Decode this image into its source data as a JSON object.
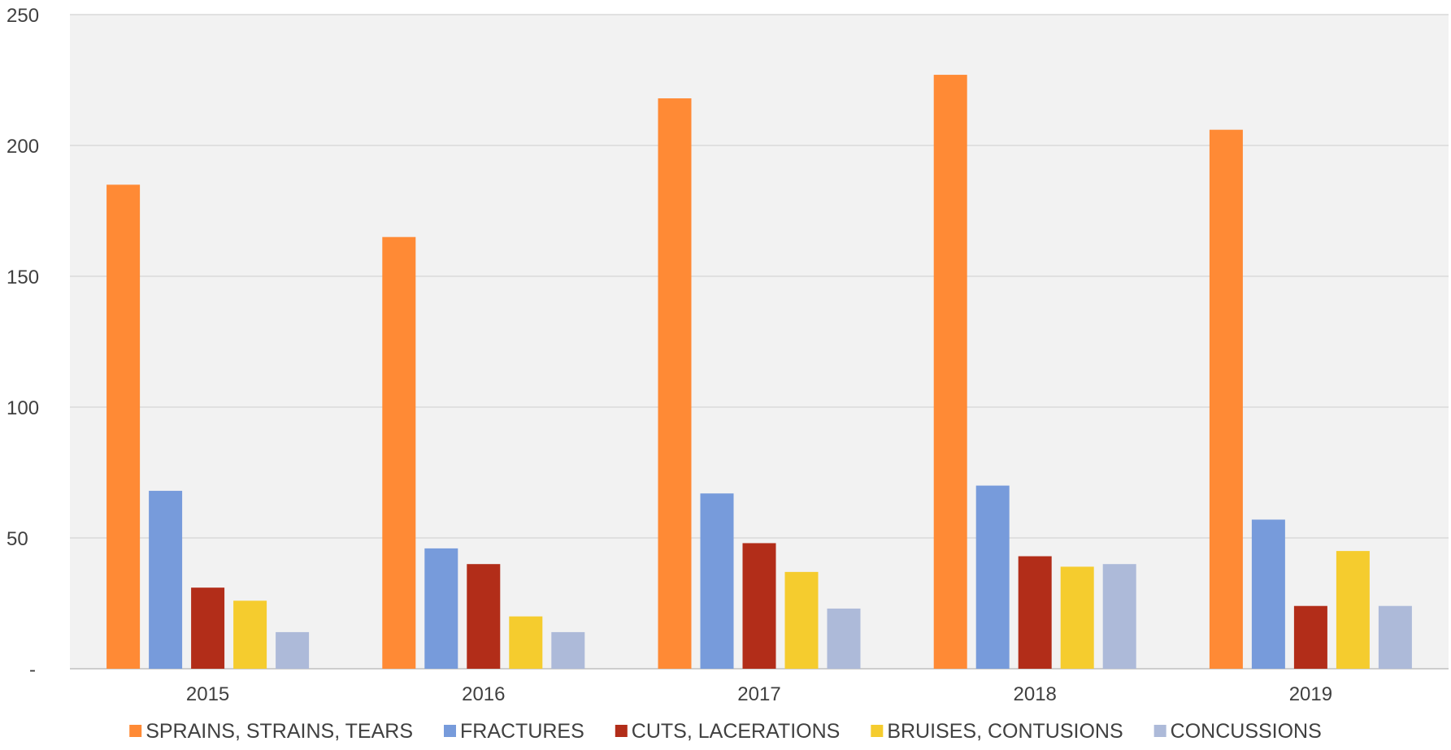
{
  "chart_data": {
    "type": "bar",
    "title": "",
    "xlabel": "",
    "ylabel": "",
    "categories": [
      "2015",
      "2016",
      "2017",
      "2018",
      "2019"
    ],
    "series": [
      {
        "name": "SPRAINS, STRAINS, TEARS",
        "color": "#ff8a35",
        "values": [
          185,
          165,
          218,
          227,
          206
        ]
      },
      {
        "name": "FRACTURES",
        "color": "#779bdb",
        "values": [
          68,
          46,
          67,
          70,
          57
        ]
      },
      {
        "name": "CUTS, LACERATIONS",
        "color": "#b22d19",
        "values": [
          31,
          40,
          48,
          43,
          24
        ]
      },
      {
        "name": "BRUISES, CONTUSIONS",
        "color": "#f5cc2e",
        "values": [
          26,
          20,
          37,
          39,
          45
        ]
      },
      {
        "name": "CONCUSSIONS",
        "color": "#adbad9",
        "values": [
          14,
          14,
          23,
          40,
          24
        ]
      }
    ],
    "ylim": [
      0,
      250
    ],
    "yticks": [
      0,
      50,
      100,
      150,
      200,
      250
    ],
    "ytick_labels": [
      "-",
      "50",
      "100",
      "150",
      "200",
      "250"
    ],
    "grid": true,
    "legend_position": "bottom",
    "plot_background": "#f2f2f2"
  }
}
